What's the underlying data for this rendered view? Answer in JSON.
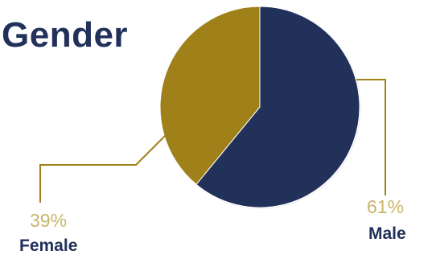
{
  "chart_data": {
    "type": "pie",
    "title": "Gender",
    "start_angle_deg": 0,
    "direction": "clockwise",
    "slices": [
      {
        "label": "Male",
        "value": 61,
        "value_label": "61%",
        "color": "#21315a"
      },
      {
        "label": "Female",
        "value": 39,
        "value_label": "39%",
        "color": "#9f8019"
      }
    ],
    "colors": {
      "title": "#21315a",
      "category_label": "#21315a",
      "percent_label": "#c9b56a",
      "leader_line": "#9f8019"
    }
  }
}
